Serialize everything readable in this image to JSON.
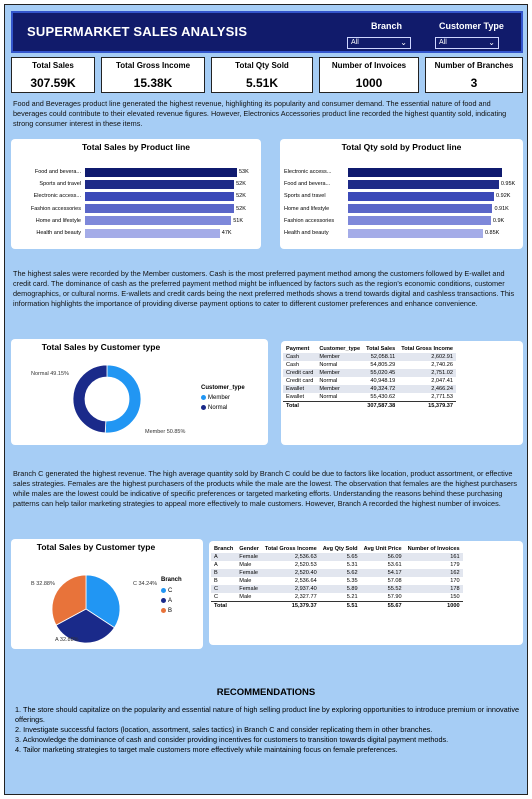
{
  "header": {
    "title": "SUPERMARKET SALES ANALYSIS",
    "branch_label": "Branch",
    "branch_value": "All",
    "customer_type_label": "Customer Type",
    "customer_type_value": "All"
  },
  "kpis": [
    {
      "label": "Total Sales",
      "value": "307.59K"
    },
    {
      "label": "Total Gross Income",
      "value": "15.38K"
    },
    {
      "label": "Total Qty Sold",
      "value": "5.51K"
    },
    {
      "label": "Number of Invoices",
      "value": "1000"
    },
    {
      "label": "Number of Branches",
      "value": "3"
    }
  ],
  "paragraphs": {
    "p1": "Food and Beverages product line generated the highest revenue, highlighting its popularity and consumer demand. The essential nature of food and beverages could contribute to their elevated revenue figures. However, Electronics Accessories product line recorded the highest quantity sold, indicating strong consumer interest in these items.",
    "p2": "The highest sales were recorded by the Member customers. Cash is the most preferred payment method among the customers followed by E-wallet and credit card. The dominance of cash as the preferred payment method might be influenced by factors such as the region's economic conditions, customer demographics, or cultural norms. E-wallets and credit cards being the next preferred methods shows a trend towards digital and cashless transactions. This information highlights the importance of providing diverse payment options to cater to different customer preferences and enhance convenience.",
    "p3": "Branch C generated the highest revenue. The high average quantity sold by Branch C could be due to factors like location, product assortment, or effective sales strategies. Females are the highest purchasers of the products while the male are the lowest. The observation that females are the highest purchasers while males are the lowest could be indicative of specific preferences or targeted marketing efforts. Understanding the reasons behind these purchasing patterns can help tailor marketing strategies to appeal more effectively to male customers. However, Branch A recorded the highest number of invoices."
  },
  "colors": {
    "dark_navy": "#0f1a6e",
    "mid_blue": "#3b49b8",
    "lavender": "#9ea6e8",
    "sky": "#2196f3",
    "orange": "#e8733a",
    "navy_pie": "#1a2a8a"
  },
  "chart_data": [
    {
      "type": "bar",
      "title": "Total Sales by Product line",
      "categories": [
        "Food and bevera...",
        "Sports and travel",
        "Electronic access...",
        "Fashion accessories",
        "Home and lifestyle",
        "Health and beauty"
      ],
      "values": [
        53,
        52,
        52,
        52,
        51,
        47
      ],
      "value_labels": [
        "53K",
        "52K",
        "52K",
        "52K",
        "51K",
        "47K"
      ],
      "xlim": [
        0,
        53
      ]
    },
    {
      "type": "bar",
      "title": "Total Qty sold by Product line",
      "categories": [
        "Electronic access...",
        "Food and bevera...",
        "Sports and travel",
        "Home and lifestyle",
        "Fashion accessories",
        "Health and beauty"
      ],
      "values": [
        0.97,
        0.95,
        0.92,
        0.91,
        0.9,
        0.85
      ],
      "value_labels": [
        "",
        "0.95K",
        "0.92K",
        "0.91K",
        "0.9K",
        "0.85K"
      ],
      "xlim": [
        0,
        0.97
      ]
    },
    {
      "type": "pie",
      "title": "Total Sales by Customer type",
      "legend_title": "Customer_type",
      "labels": [
        "Member",
        "Normal"
      ],
      "values": [
        50.85,
        49.15
      ],
      "slice_labels": [
        "Member 50.85%",
        "Normal 49.15%"
      ],
      "legend": "right"
    },
    {
      "type": "table",
      "columns": [
        "Payment",
        "Customer_type",
        "Total Sales",
        "Total Gross Income"
      ],
      "rows": [
        [
          "Cash",
          "Member",
          "52,058.11",
          "2,602.91"
        ],
        [
          "Cash",
          "Normal",
          "54,805.29",
          "2,740.26"
        ],
        [
          "Credit card",
          "Member",
          "55,020.45",
          "2,751.02"
        ],
        [
          "Credit card",
          "Normal",
          "40,948.19",
          "2,047.41"
        ],
        [
          "Ewallet",
          "Member",
          "49,324.72",
          "2,466.24"
        ],
        [
          "Ewallet",
          "Normal",
          "55,430.62",
          "2,771.53"
        ]
      ],
      "total": [
        "Total",
        "",
        "307,587.38",
        "15,379.37"
      ]
    },
    {
      "type": "pie",
      "title": "Total Sales by Customer type",
      "legend_title": "Branch",
      "labels": [
        "C",
        "A",
        "B"
      ],
      "values": [
        34.24,
        32.88,
        32.88
      ],
      "slice_labels": [
        "C 34.24%",
        "A 32.88%",
        "B 32.88%"
      ],
      "legend": "right"
    },
    {
      "type": "table",
      "columns": [
        "Branch",
        "Gender",
        "Total Gross Income",
        "Avg Qty Sold",
        "Avg Unit Price",
        "Number of Invoices"
      ],
      "rows": [
        [
          "A",
          "Female",
          "2,536.63",
          "5.65",
          "56.09",
          "161"
        ],
        [
          "A",
          "Male",
          "2,520.53",
          "5.31",
          "53.61",
          "179"
        ],
        [
          "B",
          "Female",
          "2,520.40",
          "5.62",
          "54.17",
          "162"
        ],
        [
          "B",
          "Male",
          "2,536.64",
          "5.35",
          "57.08",
          "170"
        ],
        [
          "C",
          "Female",
          "2,937.40",
          "5.89",
          "55.52",
          "178"
        ],
        [
          "C",
          "Male",
          "2,327.77",
          "5.21",
          "57.90",
          "150"
        ]
      ],
      "total": [
        "Total",
        "",
        "15,379.37",
        "5.51",
        "55.67",
        "1000"
      ]
    }
  ],
  "recommendations": {
    "title": "RECOMMENDATIONS",
    "items": [
      "1. The store should capitalize on the popularity and essential nature of high selling product line by exploring opportunities to introduce premium or innovative offerings.",
      "2. Investigate successful factors (location, assortment, sales tactics) in Branch C and consider replicating them in other branches.",
      "3. Acknowledge the dominance of cash and consider providing incentives for customers to transition towards digital payment methods.",
      "4. Tailor marketing strategies to target male customers more effectively while maintaining focus on female preferences."
    ]
  }
}
